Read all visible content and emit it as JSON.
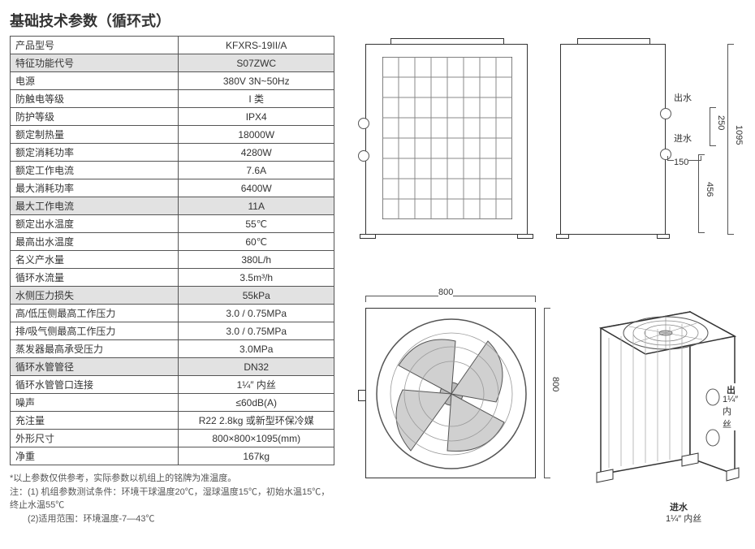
{
  "title": "基础技术参数（循环式）",
  "spec_rows": [
    {
      "label": "产品型号",
      "value": "KFXRS-19II/A",
      "shaded": false
    },
    {
      "label": "特征功能代号",
      "value": "S07ZWC",
      "shaded": true
    },
    {
      "label": "电源",
      "value": "380V 3N~50Hz",
      "shaded": false
    },
    {
      "label": "防触电等级",
      "value": "I 类",
      "shaded": false
    },
    {
      "label": "防护等级",
      "value": "IPX4",
      "shaded": false
    },
    {
      "label": "额定制热量",
      "value": "18000W",
      "shaded": false
    },
    {
      "label": "额定消耗功率",
      "value": "4280W",
      "shaded": false
    },
    {
      "label": "额定工作电流",
      "value": "7.6A",
      "shaded": false
    },
    {
      "label": "最大消耗功率",
      "value": "6400W",
      "shaded": false
    },
    {
      "label": "最大工作电流",
      "value": "11A",
      "shaded": true
    },
    {
      "label": "额定出水温度",
      "value": "55℃",
      "shaded": false
    },
    {
      "label": "最高出水温度",
      "value": "60℃",
      "shaded": false
    },
    {
      "label": "名义产水量",
      "value": "380L/h",
      "shaded": false
    },
    {
      "label": "循环水流量",
      "value": "3.5m³/h",
      "shaded": false
    },
    {
      "label": "水侧压力损失",
      "value": "55kPa",
      "shaded": true
    },
    {
      "label": "高/低压侧最高工作压力",
      "value": "3.0 / 0.75MPa",
      "shaded": false
    },
    {
      "label": "排/吸气侧最高工作压力",
      "value": "3.0 / 0.75MPa",
      "shaded": false
    },
    {
      "label": "蒸发器最高承受压力",
      "value": "3.0MPa",
      "shaded": false
    },
    {
      "label": "循环水管管径",
      "value": "DN32",
      "shaded": true
    },
    {
      "label": "循环水管管口连接",
      "value": "1¼″ 内丝",
      "shaded": false
    },
    {
      "label": "噪声",
      "value": "≤60dB(A)",
      "shaded": false
    },
    {
      "label": "充注量",
      "value": "R22 2.8kg 或新型环保冷媒",
      "shaded": false
    },
    {
      "label": "外形尺寸",
      "value": "800×800×1095(mm)",
      "shaded": false
    },
    {
      "label": "净重",
      "value": "167kg",
      "shaded": false
    }
  ],
  "notes": {
    "line1": "*以上参数仅供参考，实际参数以机组上的铭牌为准温度。",
    "line2": "注：(1) 机组参数测试条件：环境干球温度20℃，湿球温度15℃，初始水温15℃，终止水温55℃",
    "line3": "　　(2)适用范围：环境温度-7—43℃"
  },
  "diagram": {
    "stroke": "#333",
    "grille": "#888",
    "dims": {
      "front_w": "800",
      "side_h": "1095",
      "side_250": "250",
      "side_150": "150",
      "side_456": "456",
      "top_w": "800",
      "top_h": "800"
    },
    "labels": {
      "out": "出水",
      "in": "进水",
      "out_thread": "1¼″ 内丝",
      "in_thread": "1¼″ 内丝"
    }
  }
}
